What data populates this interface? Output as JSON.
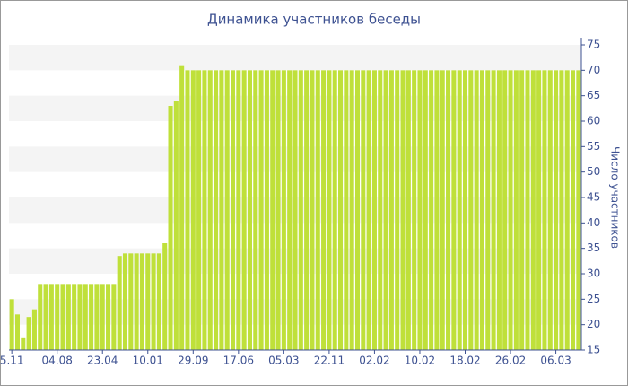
{
  "chart_data": {
    "type": "bar",
    "title": "Динамика участников беседы",
    "y_label": "Число участников",
    "categories": [
      "5.11",
      null,
      null,
      null,
      null,
      null,
      null,
      null,
      "04.08",
      null,
      null,
      null,
      null,
      null,
      null,
      null,
      "23.04",
      null,
      null,
      null,
      null,
      null,
      null,
      null,
      "10.01",
      null,
      null,
      null,
      null,
      null,
      null,
      null,
      "29.09",
      null,
      null,
      null,
      null,
      null,
      null,
      null,
      "17.06",
      null,
      null,
      null,
      null,
      null,
      null,
      null,
      "05.03",
      null,
      null,
      null,
      null,
      null,
      null,
      null,
      "22.11",
      null,
      null,
      null,
      null,
      null,
      null,
      null,
      "02.02",
      null,
      null,
      null,
      null,
      null,
      null,
      null,
      "10.02",
      null,
      null,
      null,
      null,
      null,
      null,
      null,
      "18.02",
      null,
      null,
      null,
      null,
      null,
      null,
      null,
      "26.02",
      null,
      null,
      null,
      null,
      null,
      null,
      null,
      "06.03",
      null,
      null,
      null,
      null
    ],
    "values": [
      25,
      22,
      17.5,
      21.5,
      23,
      28,
      28,
      28,
      28,
      28,
      28,
      28,
      28,
      28,
      28,
      28,
      28,
      28,
      28,
      33.5,
      34,
      34,
      34,
      34,
      34,
      34,
      34,
      36,
      63,
      64,
      71,
      70,
      70,
      70,
      70,
      70,
      70,
      70,
      70,
      70,
      70,
      70,
      70,
      70,
      70,
      70,
      70,
      70,
      70,
      70,
      70,
      70,
      70,
      70,
      70,
      70,
      70,
      70,
      70,
      70,
      70,
      70,
      70,
      70,
      70,
      70,
      70,
      70,
      70,
      70,
      70,
      70,
      70,
      70,
      70,
      70,
      70,
      70,
      70,
      70,
      70,
      70,
      70,
      70,
      70,
      70,
      70,
      70,
      70,
      70,
      70,
      70,
      70,
      70,
      70,
      70,
      70,
      70,
      70,
      70,
      70
    ],
    "color": "#bfe03a",
    "ylim": [
      15,
      75
    ],
    "yticks": [
      15,
      20,
      25,
      30,
      35,
      40,
      45,
      50,
      55,
      60,
      65,
      70,
      75
    ],
    "y_axis_side": "right",
    "grid": "bands"
  }
}
